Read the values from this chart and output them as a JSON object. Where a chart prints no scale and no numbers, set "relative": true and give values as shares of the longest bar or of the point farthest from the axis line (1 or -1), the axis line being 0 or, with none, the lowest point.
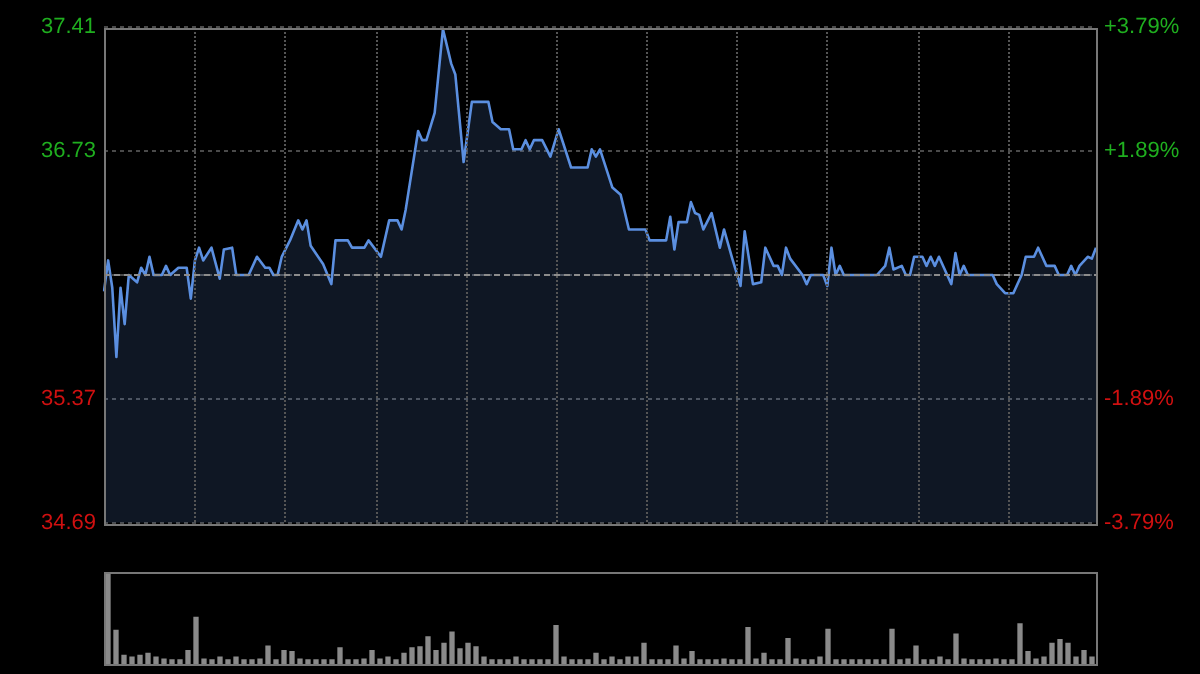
{
  "chart_data": [
    {
      "type": "area",
      "color": "#5b8fe0",
      "marker": "none",
      "grid": "y",
      "legend": false,
      "tick_labels": "y",
      "categories": [
        null,
        null,
        null,
        null,
        null,
        null,
        null,
        null,
        null,
        null,
        null,
        null,
        null,
        null,
        null,
        null,
        null,
        null,
        null,
        null,
        null,
        null,
        null,
        null,
        null,
        null,
        null,
        null,
        null,
        null,
        null,
        null,
        null,
        null,
        null,
        null,
        null,
        null,
        null,
        null,
        null,
        null,
        null,
        null,
        null,
        null,
        null,
        null,
        null,
        null,
        null,
        null,
        null,
        null,
        null,
        null,
        null,
        null,
        null,
        null,
        null,
        null,
        null,
        null,
        null,
        null,
        null,
        null,
        null,
        null,
        null,
        null,
        null,
        null,
        null,
        null,
        null,
        null,
        null,
        null,
        null,
        null,
        null,
        null,
        null,
        null,
        null,
        null,
        null,
        null,
        null,
        null,
        null,
        null,
        null,
        null,
        null,
        null,
        null,
        null,
        null,
        null,
        null,
        null,
        null,
        null,
        null,
        null,
        null,
        null,
        null,
        null,
        null,
        null,
        null,
        null,
        null,
        null,
        null,
        null,
        null,
        null,
        null,
        null,
        null,
        null,
        null,
        null,
        null,
        null,
        null,
        null,
        null,
        null,
        null,
        null,
        null,
        null,
        null,
        null,
        null,
        null,
        null,
        null,
        null,
        null,
        null,
        null,
        null,
        null,
        null,
        null,
        null,
        null,
        null,
        null,
        null,
        null,
        null,
        null,
        null,
        null,
        null,
        null,
        null,
        null,
        null,
        null,
        null,
        null,
        null,
        null,
        null,
        null,
        null,
        null,
        null,
        null,
        null,
        null,
        null,
        null,
        null,
        null,
        null,
        null,
        null,
        null,
        null,
        null,
        null,
        null,
        null,
        null,
        null,
        null,
        null,
        null,
        null,
        null,
        null,
        null,
        null,
        null,
        null,
        null,
        null,
        null,
        null,
        null,
        null,
        null,
        null,
        null,
        null,
        null,
        null,
        null,
        null,
        null,
        null,
        null,
        null,
        null,
        null,
        null,
        null,
        null,
        null,
        null,
        null,
        null,
        null,
        null,
        null,
        null,
        null,
        null,
        null,
        null,
        null
      ],
      "ylim": [
        34.69,
        37.41
      ],
      "yticks": [
        34.69,
        35.37,
        {
          "value": 36.05,
          "label": null
        },
        36.73,
        37.41
      ],
      "ref_lines": [
        {
          "axis": "y",
          "value": 36.05,
          "color": "#8c8c8c",
          "line_style": "dashed"
        }
      ],
      "y2lim": [
        -3.79,
        3.79
      ],
      "y2ticks": [
        {
          "value": -3.79,
          "label": "-3.79%"
        },
        {
          "value": -1.89,
          "label": "-1.89%"
        },
        {
          "value": 1.89,
          "label": "+1.89%"
        },
        {
          "value": 3.79,
          "label": "+3.79%"
        }
      ],
      "values": [
        35.96,
        36.13,
        35.98,
        35.6,
        35.98,
        35.78,
        36.05,
        null,
        36.01,
        36.09,
        36.05,
        36.15,
        36.05,
        null,
        36.05,
        36.1,
        36.05,
        null,
        36.09,
        null,
        36.09,
        35.92,
        36.13,
        36.2,
        36.13,
        null,
        36.2,
        null,
        36.03,
        36.19,
        null,
        36.2,
        36.05,
        null,
        null,
        36.05,
        null,
        36.15,
        null,
        36.09,
        36.09,
        36.05,
        36.05,
        36.15,
        null,
        36.24,
        null,
        36.35,
        36.3,
        36.35,
        36.21,
        null,
        null,
        36.11,
        null,
        36,
        36.24,
        null,
        null,
        36.24,
        36.2,
        null,
        null,
        36.2,
        36.24,
        null,
        null,
        36.15,
        null,
        36.35,
        null,
        36.35,
        36.3,
        36.41,
        null,
        null,
        36.84,
        36.79,
        36.79,
        null,
        36.94,
        null,
        37.4,
        null,
        37.21,
        37.15,
        null,
        36.67,
        null,
        37,
        null,
        null,
        null,
        37,
        36.89,
        null,
        36.85,
        null,
        36.85,
        36.74,
        null,
        36.74,
        36.79,
        36.74,
        36.79,
        null,
        36.79,
        null,
        36.7,
        null,
        36.85,
        36.78,
        null,
        36.64,
        null,
        null,
        null,
        36.64,
        36.74,
        36.7,
        36.74,
        null,
        null,
        36.53,
        null,
        36.49,
        null,
        36.3,
        null,
        null,
        null,
        36.3,
        36.24,
        null,
        null,
        null,
        36.24,
        36.37,
        36.19,
        36.34,
        null,
        36.34,
        36.45,
        36.39,
        36.38,
        36.3,
        null,
        36.39,
        null,
        36.2,
        36.3,
        null,
        36.14,
        null,
        35.99,
        36.29,
        null,
        36,
        null,
        36.01,
        36.2,
        null,
        36.1,
        36.1,
        36.05,
        36.2,
        36.14,
        null,
        null,
        36.05,
        36,
        36.05,
        null,
        null,
        36.05,
        35.99,
        36.2,
        36.05,
        36.1,
        36.05,
        null,
        null,
        null,
        null,
        null,
        null,
        null,
        36.05,
        null,
        36.1,
        36.2,
        36.08,
        null,
        36.1,
        36.05,
        36.05,
        36.15,
        null,
        36.15,
        36.1,
        36.15,
        36.1,
        36.15,
        null,
        36.05,
        36,
        36.17,
        36.05,
        36.1,
        36.05,
        null,
        null,
        null,
        null,
        null,
        36.05,
        36,
        null,
        35.95,
        null,
        35.95,
        null,
        36.05,
        36.15,
        null,
        36.15,
        36.2,
        null,
        36.1,
        null,
        36.1,
        36.05,
        null,
        36.05,
        36.1,
        36.05,
        36.1,
        null,
        36.15,
        36.14,
        36.2
      ]
    },
    {
      "type": "bar",
      "relative": true,
      "color": "#8a8a8a",
      "legend": false,
      "tick_labels": false,
      "categories": [
        null,
        null,
        null,
        null,
        null,
        null,
        null,
        null,
        null,
        null,
        null,
        null,
        null,
        null,
        null,
        null,
        null,
        null,
        null,
        null,
        null,
        null,
        null,
        null,
        null,
        null,
        null,
        null,
        null,
        null,
        null,
        null,
        null,
        null,
        null,
        null,
        null,
        null,
        null,
        null,
        null,
        null,
        null,
        null,
        null,
        null,
        null,
        null,
        null,
        null,
        null,
        null,
        null,
        null,
        null,
        null,
        null,
        null,
        null,
        null,
        null,
        null,
        null,
        null,
        null,
        null,
        null,
        null,
        null,
        null,
        null,
        null,
        null,
        null,
        null,
        null,
        null,
        null,
        null,
        null,
        null,
        null,
        null,
        null,
        null,
        null,
        null,
        null,
        null,
        null,
        null,
        null,
        null,
        null,
        null,
        null,
        null,
        null,
        null,
        null,
        null,
        null,
        null,
        null,
        null,
        null,
        null,
        null,
        null,
        null,
        null,
        null,
        null,
        null,
        null,
        null,
        null,
        null,
        null,
        null,
        null,
        null,
        null,
        null
      ],
      "values": [
        1,
        0.37,
        0.1,
        0.08,
        0.1,
        0.12,
        0.08,
        0.06,
        0.05,
        0.05,
        0.15,
        0.51,
        0.06,
        0.05,
        0.08,
        0.05,
        0.08,
        0.05,
        0.05,
        0.06,
        0.2,
        0.05,
        0.15,
        0.14,
        0.06,
        0.05,
        0.05,
        0.05,
        0.05,
        0.18,
        0.05,
        0.05,
        0.06,
        0.15,
        0.06,
        0.08,
        0.05,
        0.12,
        0.18,
        0.19,
        0.3,
        0.15,
        0.23,
        0.35,
        0.17,
        0.23,
        0.19,
        0.08,
        0.05,
        0.05,
        0.05,
        0.08,
        0.05,
        0.05,
        0.05,
        0.05,
        0.42,
        0.08,
        0.05,
        0.05,
        0.05,
        0.12,
        0.05,
        0.08,
        0.05,
        0.08,
        0.08,
        0.23,
        0.05,
        0.05,
        0.05,
        0.2,
        0.06,
        0.14,
        0.05,
        0.05,
        0.05,
        0.06,
        0.05,
        0.05,
        0.4,
        0.06,
        0.12,
        0.05,
        0.05,
        0.28,
        0.06,
        0.05,
        0.05,
        0.08,
        0.38,
        0.05,
        0.05,
        0.05,
        0.05,
        0.05,
        0.05,
        0.05,
        0.38,
        0.05,
        0.06,
        0.2,
        0.05,
        0.05,
        0.08,
        0.05,
        0.33,
        0.06,
        0.05,
        0.05,
        0.05,
        0.06,
        0.05,
        0.05,
        0.44,
        0.14,
        0.06,
        0.08,
        0.23,
        0.27,
        0.23,
        0.08,
        0.15,
        0.08
      ]
    }
  ]
}
